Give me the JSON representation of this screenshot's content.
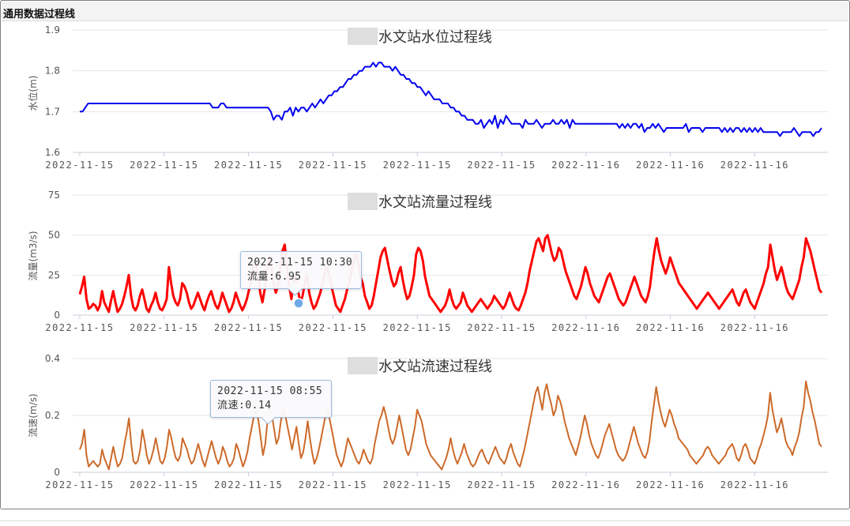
{
  "window": {
    "title": "通用数据过程线"
  },
  "colors": {
    "level": "#0000ee",
    "flow": "#ff0000",
    "speed": "#cd6a2a",
    "highlight": "#6fa8e8"
  },
  "chart_data": [
    {
      "type": "line",
      "title": "水文站水位过程线",
      "ylabel": "水位(m)",
      "ylim": [
        1.6,
        1.9
      ],
      "yticks": [
        "1.6",
        "1.7",
        "1.8",
        "1.9"
      ],
      "xticks": [
        "2022-11-15",
        "2022-11-15",
        "2022-11-15",
        "2022-11-15",
        "2022-11-15",
        "2022-11-15",
        "2022-11-16",
        "2022-11-16",
        "2022-11-16"
      ],
      "grid": true,
      "series": [
        {
          "values": [
            1.7,
            1.7,
            1.71,
            1.72,
            1.72,
            1.72,
            1.72,
            1.72,
            1.72,
            1.72,
            1.72,
            1.72,
            1.72,
            1.72,
            1.72,
            1.72,
            1.72,
            1.72,
            1.72,
            1.72,
            1.72,
            1.72,
            1.72,
            1.72,
            1.72,
            1.72,
            1.72,
            1.72,
            1.72,
            1.72,
            1.72,
            1.72,
            1.72,
            1.72,
            1.72,
            1.72,
            1.72,
            1.72,
            1.72,
            1.72,
            1.72,
            1.72,
            1.72,
            1.72,
            1.72,
            1.72,
            1.72,
            1.72,
            1.71,
            1.71,
            1.71,
            1.72,
            1.72,
            1.71,
            1.71,
            1.71,
            1.71,
            1.71,
            1.71,
            1.71,
            1.71,
            1.71,
            1.71,
            1.71,
            1.71,
            1.71,
            1.71,
            1.71,
            1.71,
            1.7,
            1.68,
            1.69,
            1.69,
            1.68,
            1.7,
            1.7,
            1.71,
            1.69,
            1.71,
            1.7,
            1.71,
            1.71,
            1.7,
            1.71,
            1.72,
            1.71,
            1.72,
            1.73,
            1.72,
            1.73,
            1.74,
            1.74,
            1.75,
            1.75,
            1.76,
            1.76,
            1.77,
            1.78,
            1.78,
            1.79,
            1.79,
            1.8,
            1.8,
            1.81,
            1.81,
            1.81,
            1.82,
            1.81,
            1.82,
            1.82,
            1.81,
            1.81,
            1.81,
            1.8,
            1.81,
            1.8,
            1.79,
            1.79,
            1.78,
            1.78,
            1.77,
            1.77,
            1.76,
            1.76,
            1.75,
            1.74,
            1.75,
            1.74,
            1.73,
            1.73,
            1.73,
            1.72,
            1.72,
            1.72,
            1.71,
            1.71,
            1.7,
            1.7,
            1.69,
            1.69,
            1.68,
            1.68,
            1.68,
            1.67,
            1.67,
            1.68,
            1.66,
            1.67,
            1.68,
            1.67,
            1.69,
            1.66,
            1.68,
            1.67,
            1.69,
            1.68,
            1.67,
            1.67,
            1.67,
            1.67,
            1.66,
            1.68,
            1.67,
            1.67,
            1.67,
            1.68,
            1.67,
            1.66,
            1.67,
            1.67,
            1.67,
            1.68,
            1.67,
            1.67,
            1.68,
            1.67,
            1.68,
            1.66,
            1.68,
            1.67,
            1.67,
            1.67,
            1.67,
            1.67,
            1.67,
            1.67,
            1.67,
            1.67,
            1.67,
            1.67,
            1.67,
            1.67,
            1.67,
            1.67,
            1.67,
            1.66,
            1.67,
            1.66,
            1.67,
            1.66,
            1.67,
            1.67,
            1.66,
            1.67,
            1.65,
            1.66,
            1.66,
            1.67,
            1.66,
            1.67,
            1.66,
            1.65,
            1.66,
            1.66,
            1.66,
            1.66,
            1.66,
            1.66,
            1.66,
            1.67,
            1.65,
            1.66,
            1.66,
            1.66,
            1.66,
            1.65,
            1.66,
            1.66,
            1.66,
            1.66,
            1.66,
            1.66,
            1.65,
            1.66,
            1.65,
            1.66,
            1.65,
            1.66,
            1.66,
            1.65,
            1.66,
            1.65,
            1.66,
            1.65,
            1.66,
            1.65,
            1.66,
            1.65,
            1.65,
            1.65,
            1.65,
            1.65,
            1.65,
            1.64,
            1.65,
            1.65,
            1.65,
            1.65,
            1.66,
            1.65,
            1.64,
            1.65,
            1.65,
            1.65,
            1.65,
            1.64,
            1.65,
            1.65,
            1.66
          ]
        }
      ]
    },
    {
      "type": "line",
      "title": "水文站流量过程线",
      "ylabel": "流量(m3/s)",
      "ylim": [
        0,
        75
      ],
      "yticks": [
        "0",
        "25",
        "50",
        "75"
      ],
      "xticks": [
        "2022-11-15",
        "2022-11-15",
        "2022-11-15",
        "2022-11-15",
        "2022-11-15",
        "2022-11-15",
        "2022-11-16",
        "2022-11-16",
        "2022-11-16"
      ],
      "grid": true,
      "series": [
        {
          "values": [
            13,
            18,
            24,
            10,
            4,
            5,
            7,
            6,
            3,
            6,
            15,
            8,
            5,
            2,
            9,
            15,
            8,
            2,
            4,
            7,
            12,
            18,
            25,
            12,
            5,
            3,
            6,
            12,
            16,
            10,
            4,
            2,
            6,
            9,
            14,
            8,
            4,
            3,
            6,
            10,
            30,
            20,
            12,
            8,
            6,
            10,
            20,
            18,
            14,
            8,
            4,
            6,
            10,
            14,
            10,
            6,
            3,
            8,
            12,
            15,
            10,
            6,
            4,
            8,
            14,
            10,
            6,
            2,
            4,
            8,
            14,
            10,
            6,
            3,
            6,
            10,
            16,
            22,
            30,
            34,
            24,
            14,
            8,
            16,
            28,
            36,
            30,
            20,
            14,
            18,
            30,
            40,
            44,
            30,
            18,
            10,
            20,
            25,
            15,
            8,
            12,
            20,
            25,
            14,
            8,
            4,
            6,
            10,
            14,
            20,
            26,
            30,
            25,
            18,
            12,
            6,
            4,
            2,
            6,
            10,
            16,
            20,
            28,
            34,
            38,
            32,
            24,
            20,
            12,
            8,
            4,
            6,
            12,
            20,
            28,
            36,
            40,
            42,
            35,
            28,
            22,
            18,
            20,
            26,
            30,
            22,
            15,
            10,
            12,
            18,
            25,
            38,
            42,
            40,
            34,
            24,
            18,
            12,
            10,
            8,
            6,
            4,
            2,
            4,
            6,
            10,
            16,
            10,
            6,
            4,
            6,
            8,
            14,
            10,
            6,
            4,
            2,
            4,
            6,
            8,
            10,
            8,
            6,
            4,
            6,
            8,
            12,
            10,
            8,
            6,
            4,
            6,
            10,
            14,
            10,
            6,
            4,
            3,
            6,
            10,
            14,
            20,
            28,
            34,
            40,
            46,
            48,
            44,
            40,
            48,
            50,
            44,
            38,
            34,
            36,
            42,
            40,
            34,
            28,
            24,
            20,
            16,
            12,
            10,
            14,
            18,
            24,
            30,
            26,
            20,
            16,
            12,
            10,
            8,
            12,
            16,
            20,
            24,
            26,
            22,
            18,
            14,
            10,
            8,
            6,
            8,
            12,
            16,
            20,
            24,
            20,
            16,
            12,
            10,
            8,
            12,
            18,
            30,
            40,
            48,
            40,
            34,
            30,
            26,
            30,
            36,
            32,
            28,
            24,
            20,
            18,
            16,
            14,
            12,
            10,
            8,
            6,
            4,
            6,
            8,
            10,
            12,
            14,
            12,
            10,
            8,
            6,
            4,
            6,
            8,
            10,
            12,
            14,
            16,
            12,
            8,
            6,
            10,
            14,
            16,
            12,
            8,
            6,
            4,
            8,
            12,
            16,
            20,
            26,
            30,
            44,
            36,
            28,
            22,
            26,
            30,
            24,
            18,
            14,
            12,
            10,
            14,
            18,
            22,
            30,
            36,
            48,
            44,
            40,
            34,
            28,
            22,
            16,
            14
          ]
        }
      ]
    },
    {
      "type": "line",
      "title": "水文站流速过程线",
      "ylabel": "流速(m/s)",
      "ylim": [
        0,
        0.4
      ],
      "yticks": [
        "0",
        "0.2",
        "0.4"
      ],
      "xticks": [
        "2022-11-15",
        "2022-11-15",
        "2022-11-15",
        "2022-11-15",
        "2022-11-15",
        "2022-11-15",
        "2022-11-16",
        "2022-11-16",
        "2022-11-16"
      ],
      "grid": true,
      "series": [
        {
          "values": [
            0.08,
            0.1,
            0.15,
            0.06,
            0.02,
            0.03,
            0.04,
            0.03,
            0.02,
            0.03,
            0.08,
            0.05,
            0.03,
            0.01,
            0.05,
            0.09,
            0.05,
            0.02,
            0.03,
            0.05,
            0.1,
            0.14,
            0.19,
            0.1,
            0.04,
            0.03,
            0.04,
            0.08,
            0.15,
            0.11,
            0.06,
            0.03,
            0.05,
            0.08,
            0.12,
            0.08,
            0.04,
            0.03,
            0.05,
            0.09,
            0.15,
            0.12,
            0.08,
            0.05,
            0.04,
            0.06,
            0.12,
            0.1,
            0.08,
            0.05,
            0.03,
            0.04,
            0.07,
            0.1,
            0.07,
            0.04,
            0.02,
            0.05,
            0.08,
            0.11,
            0.08,
            0.05,
            0.03,
            0.05,
            0.09,
            0.07,
            0.04,
            0.02,
            0.03,
            0.05,
            0.1,
            0.08,
            0.05,
            0.02,
            0.04,
            0.07,
            0.12,
            0.16,
            0.2,
            0.22,
            0.18,
            0.12,
            0.06,
            0.1,
            0.18,
            0.22,
            0.2,
            0.15,
            0.1,
            0.12,
            0.18,
            0.22,
            0.2,
            0.16,
            0.12,
            0.08,
            0.12,
            0.16,
            0.1,
            0.05,
            0.07,
            0.12,
            0.18,
            0.12,
            0.07,
            0.03,
            0.05,
            0.08,
            0.12,
            0.16,
            0.2,
            0.22,
            0.18,
            0.14,
            0.1,
            0.06,
            0.04,
            0.02,
            0.04,
            0.08,
            0.12,
            0.1,
            0.08,
            0.06,
            0.04,
            0.03,
            0.05,
            0.08,
            0.06,
            0.04,
            0.03,
            0.05,
            0.1,
            0.14,
            0.18,
            0.2,
            0.23,
            0.2,
            0.16,
            0.12,
            0.1,
            0.12,
            0.16,
            0.2,
            0.16,
            0.12,
            0.08,
            0.06,
            0.08,
            0.12,
            0.16,
            0.22,
            0.2,
            0.18,
            0.14,
            0.1,
            0.08,
            0.06,
            0.05,
            0.04,
            0.03,
            0.02,
            0.01,
            0.03,
            0.05,
            0.08,
            0.12,
            0.08,
            0.05,
            0.03,
            0.05,
            0.07,
            0.1,
            0.07,
            0.05,
            0.03,
            0.02,
            0.03,
            0.05,
            0.07,
            0.08,
            0.06,
            0.04,
            0.03,
            0.05,
            0.07,
            0.09,
            0.07,
            0.05,
            0.04,
            0.03,
            0.05,
            0.08,
            0.1,
            0.07,
            0.05,
            0.03,
            0.02,
            0.05,
            0.08,
            0.12,
            0.16,
            0.2,
            0.24,
            0.28,
            0.3,
            0.26,
            0.22,
            0.28,
            0.31,
            0.27,
            0.24,
            0.2,
            0.22,
            0.27,
            0.25,
            0.22,
            0.18,
            0.15,
            0.12,
            0.1,
            0.08,
            0.06,
            0.09,
            0.12,
            0.16,
            0.2,
            0.17,
            0.13,
            0.1,
            0.08,
            0.06,
            0.05,
            0.07,
            0.1,
            0.13,
            0.15,
            0.17,
            0.14,
            0.11,
            0.08,
            0.06,
            0.05,
            0.04,
            0.05,
            0.07,
            0.1,
            0.13,
            0.16,
            0.13,
            0.1,
            0.08,
            0.06,
            0.05,
            0.07,
            0.11,
            0.18,
            0.24,
            0.3,
            0.25,
            0.21,
            0.18,
            0.16,
            0.19,
            0.22,
            0.2,
            0.17,
            0.15,
            0.12,
            0.11,
            0.1,
            0.09,
            0.08,
            0.06,
            0.05,
            0.04,
            0.03,
            0.04,
            0.05,
            0.06,
            0.08,
            0.09,
            0.08,
            0.06,
            0.05,
            0.04,
            0.03,
            0.04,
            0.05,
            0.06,
            0.08,
            0.09,
            0.1,
            0.08,
            0.05,
            0.04,
            0.06,
            0.09,
            0.1,
            0.08,
            0.05,
            0.04,
            0.03,
            0.05,
            0.08,
            0.1,
            0.13,
            0.16,
            0.2,
            0.28,
            0.22,
            0.18,
            0.14,
            0.16,
            0.19,
            0.15,
            0.11,
            0.09,
            0.08,
            0.06,
            0.09,
            0.11,
            0.14,
            0.19,
            0.23,
            0.32,
            0.28,
            0.25,
            0.21,
            0.18,
            0.14,
            0.1,
            0.09
          ]
        }
      ]
    }
  ],
  "tooltips": [
    {
      "time": "2022-11-15 10:30",
      "value": "流量:6.95"
    },
    {
      "time": "2022-11-15 08:55",
      "value": "流速:0.14"
    }
  ]
}
